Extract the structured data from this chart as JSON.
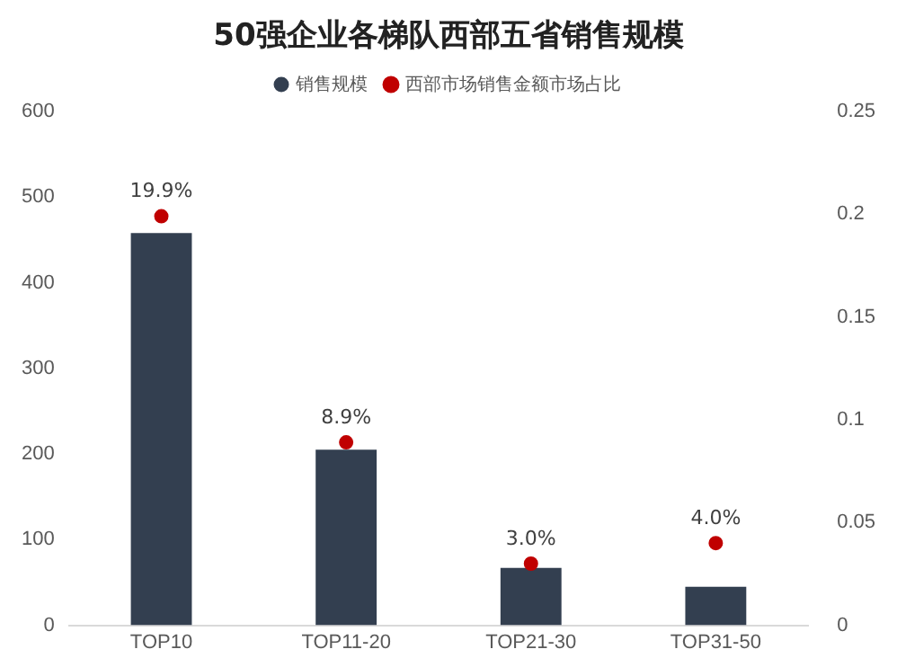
{
  "chart_data": {
    "type": "bar",
    "title": "50强企业各梯队西部五省销售规模",
    "categories": [
      "TOP10",
      "TOP11-20",
      "TOP21-30",
      "TOP31-50"
    ],
    "series": [
      {
        "name": "销售规模",
        "color": "#333f50",
        "values": [
          458,
          205,
          67,
          45
        ]
      },
      {
        "name": "西部市场销售金额市场占比",
        "type": "scatter",
        "axis": "y2",
        "color": "#c00000",
        "values": [
          0.199,
          0.089,
          0.03,
          0.04
        ],
        "value_labels": [
          "19.9%",
          "8.9%",
          "3.0%",
          "4.0%"
        ]
      }
    ],
    "ylim": [
      0,
      600
    ],
    "yticks": [
      0,
      100,
      200,
      300,
      400,
      500,
      600
    ],
    "y2lim": [
      0,
      0.25
    ],
    "y2ticks": [
      0,
      0.05,
      0.1,
      0.15,
      0.2,
      0.25
    ],
    "grid": false,
    "legend": "top",
    "marker": "circle"
  }
}
